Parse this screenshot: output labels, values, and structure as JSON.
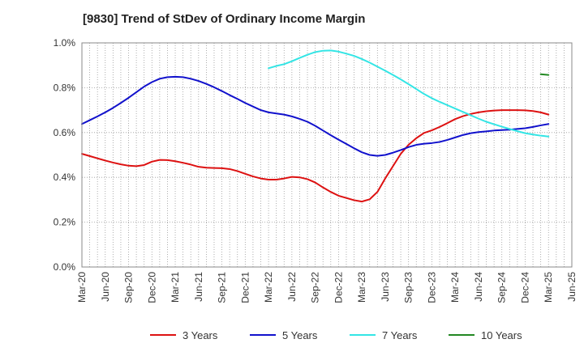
{
  "chart_data": {
    "type": "line",
    "title": "[9830]  Trend of StDev of Ordinary Income Margin",
    "xlabel": "",
    "ylabel": "",
    "x_ticks": [
      "Mar-20",
      "Jun-20",
      "Sep-20",
      "Dec-20",
      "Mar-21",
      "Jun-21",
      "Sep-21",
      "Dec-21",
      "Mar-22",
      "Jun-22",
      "Sep-22",
      "Dec-22",
      "Mar-23",
      "Jun-23",
      "Sep-23",
      "Dec-23",
      "Mar-24",
      "Jun-24",
      "Sep-24",
      "Dec-24",
      "Mar-25",
      "Jun-25"
    ],
    "y_ticks": [
      "0.0%",
      "0.2%",
      "0.4%",
      "0.6%",
      "0.8%",
      "1.0%"
    ],
    "ylim": [
      0,
      1.0
    ],
    "y_unit": "%",
    "grid": true,
    "legend_position": "bottom",
    "series": [
      {
        "name": "3 Years",
        "color": "#dd1111",
        "points": [
          [
            "Mar-20",
            0.505
          ],
          [
            "Apr-20",
            0.495
          ],
          [
            "May-20",
            0.485
          ],
          [
            "Jun-20",
            0.475
          ],
          [
            "Jul-20",
            0.466
          ],
          [
            "Aug-20",
            0.458
          ],
          [
            "Sep-20",
            0.452
          ],
          [
            "Oct-20",
            0.45
          ],
          [
            "Nov-20",
            0.455
          ],
          [
            "Dec-20",
            0.47
          ],
          [
            "Jan-21",
            0.478
          ],
          [
            "Feb-21",
            0.477
          ],
          [
            "Mar-21",
            0.472
          ],
          [
            "Apr-21",
            0.465
          ],
          [
            "May-21",
            0.457
          ],
          [
            "Jun-21",
            0.447
          ],
          [
            "Jul-21",
            0.443
          ],
          [
            "Aug-21",
            0.442
          ],
          [
            "Sep-21",
            0.441
          ],
          [
            "Oct-21",
            0.437
          ],
          [
            "Nov-21",
            0.428
          ],
          [
            "Dec-21",
            0.416
          ],
          [
            "Jan-22",
            0.404
          ],
          [
            "Feb-22",
            0.395
          ],
          [
            "Mar-22",
            0.39
          ],
          [
            "Apr-22",
            0.39
          ],
          [
            "May-22",
            0.395
          ],
          [
            "Jun-22",
            0.402
          ],
          [
            "Jul-22",
            0.4
          ],
          [
            "Aug-22",
            0.392
          ],
          [
            "Sep-22",
            0.377
          ],
          [
            "Oct-22",
            0.355
          ],
          [
            "Nov-22",
            0.335
          ],
          [
            "Dec-22",
            0.318
          ],
          [
            "Jan-23",
            0.308
          ],
          [
            "Feb-23",
            0.298
          ],
          [
            "Mar-23",
            0.292
          ],
          [
            "Apr-23",
            0.302
          ],
          [
            "May-23",
            0.335
          ],
          [
            "Jun-23",
            0.395
          ],
          [
            "Jul-23",
            0.45
          ],
          [
            "Aug-23",
            0.505
          ],
          [
            "Sep-23",
            0.545
          ],
          [
            "Oct-23",
            0.575
          ],
          [
            "Nov-23",
            0.598
          ],
          [
            "Dec-23",
            0.61
          ],
          [
            "Jan-24",
            0.625
          ],
          [
            "Feb-24",
            0.642
          ],
          [
            "Mar-24",
            0.66
          ],
          [
            "Apr-24",
            0.673
          ],
          [
            "May-24",
            0.683
          ],
          [
            "Jun-24",
            0.69
          ],
          [
            "Jul-24",
            0.695
          ],
          [
            "Aug-24",
            0.698
          ],
          [
            "Sep-24",
            0.7
          ],
          [
            "Oct-24",
            0.7
          ],
          [
            "Nov-24",
            0.7
          ],
          [
            "Dec-24",
            0.699
          ],
          [
            "Jan-25",
            0.696
          ],
          [
            "Feb-25",
            0.69
          ],
          [
            "Mar-25",
            0.68
          ]
        ]
      },
      {
        "name": "5 Years",
        "color": "#1111cc",
        "points": [
          [
            "Mar-20",
            0.638
          ],
          [
            "Apr-20",
            0.655
          ],
          [
            "May-20",
            0.672
          ],
          [
            "Jun-20",
            0.69
          ],
          [
            "Jul-20",
            0.71
          ],
          [
            "Aug-20",
            0.732
          ],
          [
            "Sep-20",
            0.755
          ],
          [
            "Oct-20",
            0.78
          ],
          [
            "Nov-20",
            0.805
          ],
          [
            "Dec-20",
            0.825
          ],
          [
            "Jan-21",
            0.84
          ],
          [
            "Feb-21",
            0.847
          ],
          [
            "Mar-21",
            0.849
          ],
          [
            "Apr-21",
            0.847
          ],
          [
            "May-21",
            0.84
          ],
          [
            "Jun-21",
            0.83
          ],
          [
            "Jul-21",
            0.817
          ],
          [
            "Aug-21",
            0.802
          ],
          [
            "Sep-21",
            0.785
          ],
          [
            "Oct-21",
            0.767
          ],
          [
            "Nov-21",
            0.75
          ],
          [
            "Dec-21",
            0.732
          ],
          [
            "Jan-22",
            0.716
          ],
          [
            "Feb-22",
            0.7
          ],
          [
            "Mar-22",
            0.69
          ],
          [
            "Apr-22",
            0.685
          ],
          [
            "May-22",
            0.68
          ],
          [
            "Jun-22",
            0.672
          ],
          [
            "Jul-22",
            0.661
          ],
          [
            "Aug-22",
            0.648
          ],
          [
            "Sep-22",
            0.63
          ],
          [
            "Oct-22",
            0.609
          ],
          [
            "Nov-22",
            0.588
          ],
          [
            "Dec-22",
            0.568
          ],
          [
            "Jan-23",
            0.549
          ],
          [
            "Feb-23",
            0.53
          ],
          [
            "Mar-23",
            0.512
          ],
          [
            "Apr-23",
            0.5
          ],
          [
            "May-23",
            0.496
          ],
          [
            "Jun-23",
            0.5
          ],
          [
            "Jul-23",
            0.51
          ],
          [
            "Aug-23",
            0.522
          ],
          [
            "Sep-23",
            0.535
          ],
          [
            "Oct-23",
            0.545
          ],
          [
            "Nov-23",
            0.55
          ],
          [
            "Dec-23",
            0.553
          ],
          [
            "Jan-24",
            0.558
          ],
          [
            "Feb-24",
            0.567
          ],
          [
            "Mar-24",
            0.578
          ],
          [
            "Apr-24",
            0.589
          ],
          [
            "May-24",
            0.597
          ],
          [
            "Jun-24",
            0.602
          ],
          [
            "Jul-24",
            0.605
          ],
          [
            "Aug-24",
            0.609
          ],
          [
            "Sep-24",
            0.611
          ],
          [
            "Oct-24",
            0.613
          ],
          [
            "Nov-24",
            0.616
          ],
          [
            "Dec-24",
            0.619
          ],
          [
            "Jan-25",
            0.625
          ],
          [
            "Feb-25",
            0.632
          ],
          [
            "Mar-25",
            0.638
          ]
        ]
      },
      {
        "name": "7 Years",
        "color": "#33e5e5",
        "points": [
          [
            "Mar-22",
            0.887
          ],
          [
            "Apr-22",
            0.897
          ],
          [
            "May-22",
            0.905
          ],
          [
            "Jun-22",
            0.918
          ],
          [
            "Jul-22",
            0.933
          ],
          [
            "Aug-22",
            0.947
          ],
          [
            "Sep-22",
            0.959
          ],
          [
            "Oct-22",
            0.965
          ],
          [
            "Nov-22",
            0.966
          ],
          [
            "Dec-22",
            0.961
          ],
          [
            "Jan-23",
            0.952
          ],
          [
            "Feb-23",
            0.942
          ],
          [
            "Mar-23",
            0.928
          ],
          [
            "Apr-23",
            0.912
          ],
          [
            "May-23",
            0.894
          ],
          [
            "Jun-23",
            0.876
          ],
          [
            "Jul-23",
            0.857
          ],
          [
            "Aug-23",
            0.837
          ],
          [
            "Sep-23",
            0.816
          ],
          [
            "Oct-23",
            0.794
          ],
          [
            "Nov-23",
            0.772
          ],
          [
            "Dec-23",
            0.753
          ],
          [
            "Jan-24",
            0.737
          ],
          [
            "Feb-24",
            0.722
          ],
          [
            "Mar-24",
            0.707
          ],
          [
            "Apr-24",
            0.692
          ],
          [
            "May-24",
            0.677
          ],
          [
            "Jun-24",
            0.662
          ],
          [
            "Jul-24",
            0.648
          ],
          [
            "Aug-24",
            0.637
          ],
          [
            "Sep-24",
            0.626
          ],
          [
            "Oct-24",
            0.616
          ],
          [
            "Nov-24",
            0.606
          ],
          [
            "Dec-24",
            0.597
          ],
          [
            "Jan-25",
            0.591
          ],
          [
            "Feb-25",
            0.586
          ],
          [
            "Mar-25",
            0.582
          ]
        ]
      },
      {
        "name": "10 Years",
        "color": "#228822",
        "points": [
          [
            "Feb-25",
            0.86
          ],
          [
            "Mar-25",
            0.857
          ]
        ]
      }
    ]
  }
}
